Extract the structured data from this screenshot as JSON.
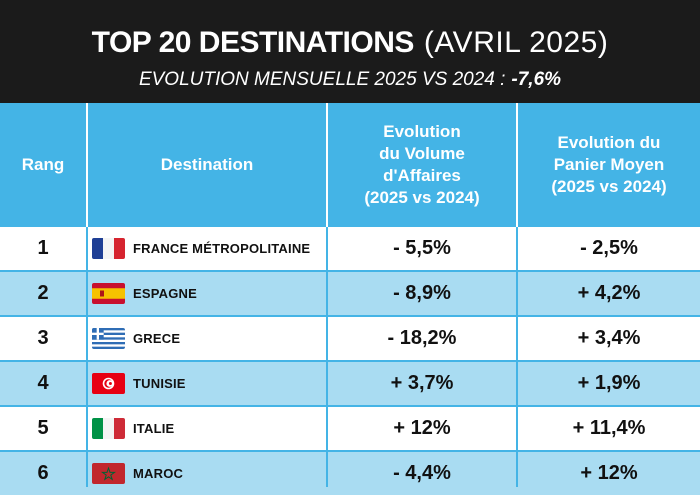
{
  "header": {
    "title_main": "TOP 20 DESTINATIONS",
    "title_sub": "(AVRIL 2025)",
    "subtitle": "EVOLUTION MENSUELLE 2025 VS 2024 :",
    "subtitle_value": "-7,6%"
  },
  "table": {
    "columns": [
      "Rang",
      "Destination",
      "Evolution\ndu Volume\nd'Affaires\n(2025 vs 2024)",
      "Evolution du\nPanier Moyen\n(2025 vs 2024)"
    ],
    "rows": [
      {
        "rank": "1",
        "flag": "france-flag-icon",
        "destination": "FRANCE MÉTROPOLITAINE",
        "volume": "- 5,5%",
        "panier": "- 2,5%"
      },
      {
        "rank": "2",
        "flag": "spain-flag-icon",
        "destination": "ESPAGNE",
        "volume": "- 8,9%",
        "panier": "+ 4,2%"
      },
      {
        "rank": "3",
        "flag": "greece-flag-icon",
        "destination": "GRECE",
        "volume": "- 18,2%",
        "panier": "+ 3,4%"
      },
      {
        "rank": "4",
        "flag": "tunisia-flag-icon",
        "destination": "TUNISIE",
        "volume": "+ 3,7%",
        "panier": "+ 1,9%"
      },
      {
        "rank": "5",
        "flag": "italy-flag-icon",
        "destination": "ITALIE",
        "volume": "+ 12%",
        "panier": "+ 11,4%"
      },
      {
        "rank": "6",
        "flag": "morocco-flag-icon",
        "destination": "MAROC",
        "volume": "- 4,4%",
        "panier": "+ 12%"
      }
    ]
  },
  "colors": {
    "banner": "#1b1b1b",
    "header_blue": "#44b4e6",
    "stripe_blue": "#a9dcf2"
  }
}
